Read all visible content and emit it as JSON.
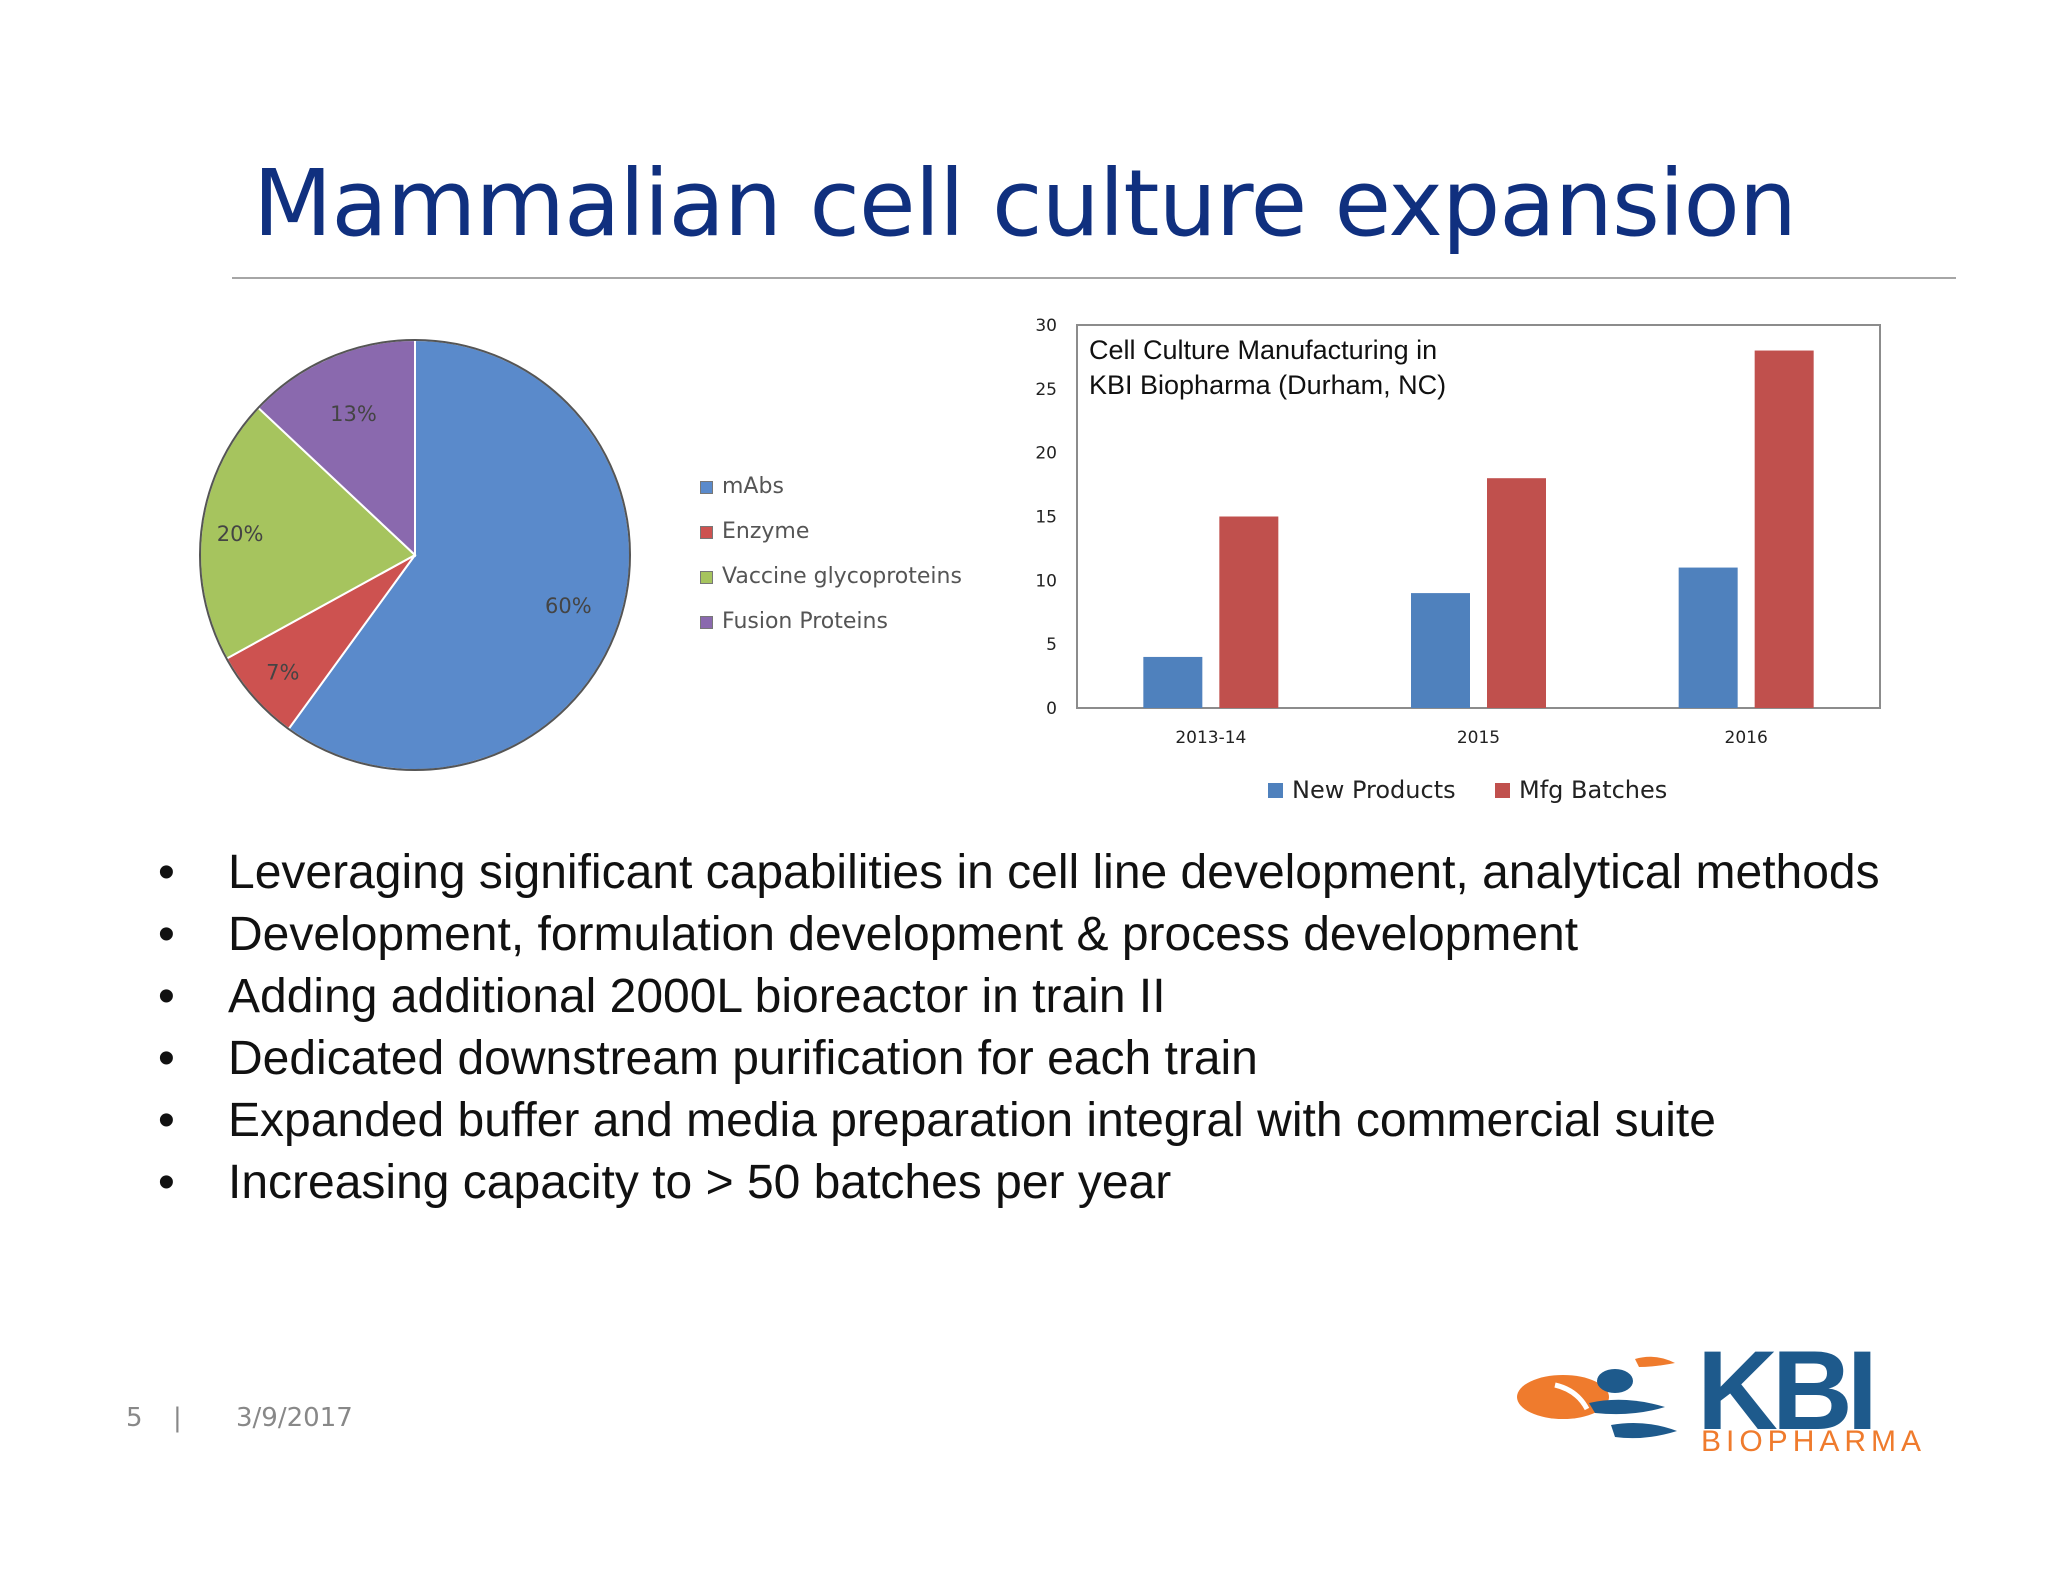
{
  "slide": {
    "title": "Mammalian cell culture expansion",
    "page_number": "5",
    "separator": "|",
    "date": "3/9/2017"
  },
  "pie": {
    "chart_data": {
      "type": "pie",
      "slices": [
        {
          "name": "mAbs",
          "value": 60,
          "label": "60%",
          "color": "#5a8acb"
        },
        {
          "name": "Enzyme",
          "value": 7,
          "label": "7%",
          "color": "#cd5250"
        },
        {
          "name": "Vaccine glycoproteins",
          "value": 20,
          "label": "20%",
          "color": "#a6c45e"
        },
        {
          "name": "Fusion Proteins",
          "value": 13,
          "label": "13%",
          "color": "#8a69ae"
        }
      ],
      "legend_position": "right"
    }
  },
  "bar": {
    "chart_data": {
      "type": "bar",
      "title": "Cell Culture Manufacturing in KBI Biopharma (Durham, NC)",
      "title_lines": [
        "Cell Culture Manufacturing in",
        "KBI Biopharma (Durham, NC)"
      ],
      "categories": [
        "2013-14",
        "2015",
        "2016"
      ],
      "series": [
        {
          "name": "New Products",
          "values": [
            4,
            9,
            11
          ],
          "color": "#4f81bd"
        },
        {
          "name": "Mfg Batches",
          "values": [
            15,
            18,
            28
          ],
          "color": "#c0504d"
        }
      ],
      "ylim": [
        0,
        30
      ],
      "yticks": [
        0,
        5,
        10,
        15,
        20,
        25,
        30
      ],
      "grid": false,
      "legend_position": "bottom"
    }
  },
  "bullets": [
    "Leveraging significant capabilities in cell line development, analytical methods",
    "Development, formulation development & process development",
    "Adding additional 2000L bioreactor in train II",
    "Dedicated downstream purification for each train",
    "Expanded buffer and media preparation integral with commercial suite",
    "Increasing capacity to > 50 batches per year"
  ],
  "bullet_symbol": "•",
  "logo": {
    "name": "KBI",
    "subtitle": "BIOPHARMA",
    "colors": {
      "orange": "#ef7b2d",
      "blue": "#1e5a8c"
    }
  }
}
